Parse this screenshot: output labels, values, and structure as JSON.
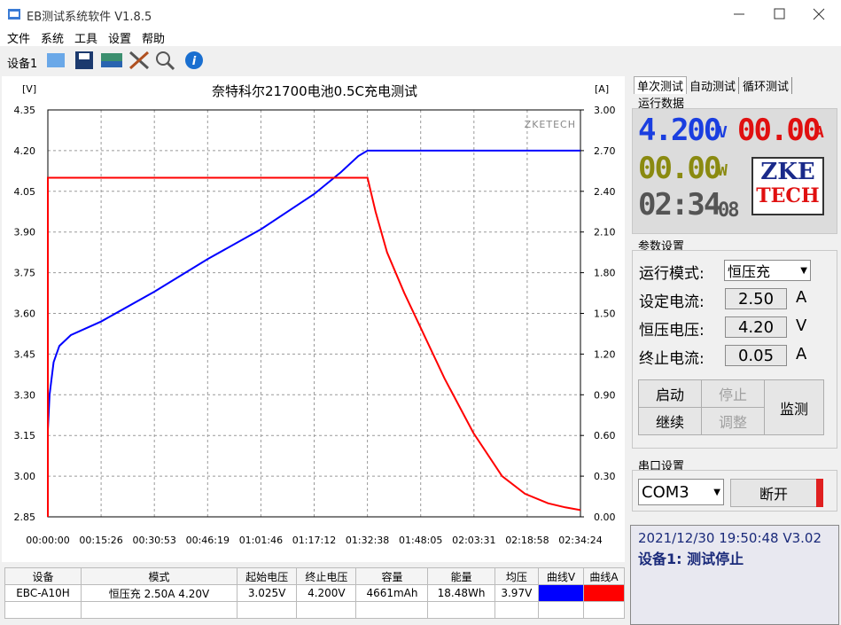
{
  "window": {
    "title": "EB测试系统软件 V1.8.5",
    "menu": [
      "文件",
      "系统",
      "工具",
      "设置",
      "帮助"
    ],
    "device_tab": "设备1"
  },
  "chart_data": {
    "type": "line",
    "title": "奈特科尔21700电池0.5C充电测试",
    "ylabel": "[V]",
    "y2label": "[A]",
    "annotation": "ZKETECH",
    "grid": true,
    "xlim": [
      0,
      9264
    ],
    "xticks": [
      {
        "value": 0,
        "label": "00:00:00"
      },
      {
        "value": 926.4,
        "label": "00:15:26"
      },
      {
        "value": 1852.8,
        "label": "00:30:53"
      },
      {
        "value": 2779.2,
        "label": "00:46:19"
      },
      {
        "value": 3705.6,
        "label": "01:01:46"
      },
      {
        "value": 4632,
        "label": "01:17:12"
      },
      {
        "value": 5558.4,
        "label": "01:32:38"
      },
      {
        "value": 6484.8,
        "label": "01:48:05"
      },
      {
        "value": 7411.2,
        "label": "02:03:31"
      },
      {
        "value": 8337.6,
        "label": "02:18:58"
      },
      {
        "value": 9264,
        "label": "02:34:24"
      }
    ],
    "ylim": [
      2.85,
      4.35
    ],
    "yticks": [
      2.85,
      {
        "value": 3,
        "label": "3.00"
      },
      3.15,
      {
        "value": 3.3,
        "label": "3.30"
      },
      3.45,
      {
        "value": 3.6,
        "label": "3.60"
      },
      3.75,
      {
        "value": 3.9,
        "label": "3.90"
      },
      4.05,
      {
        "value": 4.2,
        "label": "4.20"
      },
      4.35
    ],
    "y2lim": [
      0,
      3
    ],
    "y2ticks": [
      {
        "value": 0,
        "label": "0.00"
      },
      {
        "value": 0.3,
        "label": "0.30"
      },
      {
        "value": 0.6,
        "label": "0.60"
      },
      {
        "value": 0.9,
        "label": "0.90"
      },
      {
        "value": 1.2,
        "label": "1.20"
      },
      {
        "value": 1.5,
        "label": "1.50"
      },
      {
        "value": 1.8,
        "label": "1.80"
      },
      {
        "value": 2.1,
        "label": "2.10"
      },
      {
        "value": 2.4,
        "label": "2.40"
      },
      {
        "value": 2.7,
        "label": "2.70"
      },
      {
        "value": 3,
        "label": "3.00"
      }
    ],
    "series": [
      {
        "color": "#0000ff",
        "x": [
          0,
          30,
          100,
          200,
          400,
          926,
          1853,
          2779,
          3706,
          4632,
          5095,
          5400,
          5560,
          9264
        ],
        "values": [
          3.17,
          3.3,
          3.42,
          3.48,
          3.52,
          3.57,
          3.68,
          3.8,
          3.91,
          4.04,
          4.12,
          4.18,
          4.2,
          4.2
        ]
      },
      {
        "color": "#ff0000",
        "axis": "y2",
        "x": [
          0,
          0,
          5560,
          5700,
          5900,
          6200,
          6500,
          6900,
          7400,
          7900,
          8300,
          8700,
          9000,
          9264
        ],
        "values": [
          0,
          2.5,
          2.5,
          2.25,
          1.95,
          1.65,
          1.38,
          1.02,
          0.62,
          0.3,
          0.17,
          0.1,
          0.07,
          0.05
        ]
      }
    ]
  },
  "table": {
    "headers": [
      "设备",
      "模式",
      "起始电压",
      "终止电压",
      "容量",
      "能量",
      "均压",
      "曲线V",
      "曲线A"
    ],
    "rows": [
      [
        "EBC-A10H",
        "恒压充  2.50A  4.20V",
        "3.025V",
        "4.200V",
        "4661mAh",
        "18.48Wh",
        "3.97V"
      ]
    ]
  },
  "panel": {
    "tabs": [
      "单次测试",
      "自动测试",
      "循环测试"
    ],
    "run_data": {
      "label": "运行数据",
      "voltage": "4.200",
      "voltage_unit": "V",
      "current": "00.00",
      "current_unit": "A",
      "power": "00.00",
      "power_unit": "W",
      "time": "02:34",
      "time_seconds": "08",
      "logo_top": "ZKE",
      "logo_bottom": "TECH"
    },
    "params": {
      "label": "参数设置",
      "mode_label": "运行模式:",
      "mode": "恒压充",
      "current_label": "设定电流:",
      "current": "2.50",
      "current_unit": "A",
      "voltage_label": "恒压电压:",
      "voltage": "4.20",
      "voltage_unit": "V",
      "end_label": "终止电流:",
      "end": "0.05",
      "end_unit": "A"
    },
    "buttons": [
      "启动",
      "停止",
      "继续",
      "调整",
      "监测"
    ],
    "serial": {
      "label": "串口设置",
      "port": "COM3",
      "button": "断开"
    },
    "status": {
      "line1": "2021/12/30 19:50:48  V3.02",
      "line2": "设备1: 测试停止"
    }
  }
}
